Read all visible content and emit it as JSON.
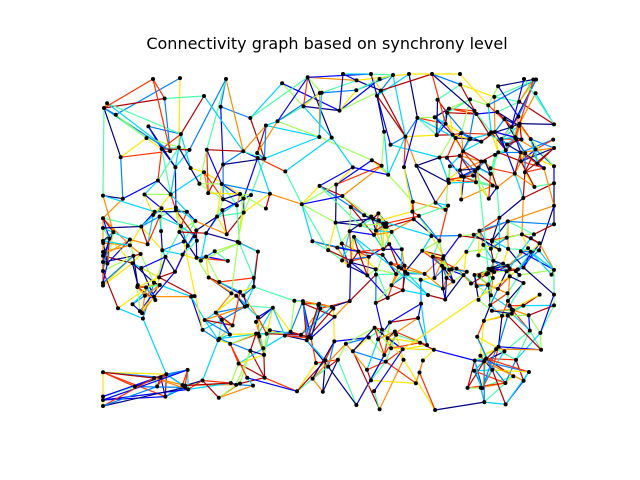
{
  "figure": {
    "title": "Connectivity graph based on synchrony level",
    "background": "#ffffff",
    "node_color": "#000000",
    "colormap": "jet",
    "edge_palette": [
      "#00007f",
      "#0000ff",
      "#0080ff",
      "#00d4ff",
      "#4dffaa",
      "#a0ff5a",
      "#ffe600",
      "#ff8c00",
      "#ff3000",
      "#b00000"
    ],
    "show_axes": false,
    "show_grid": false,
    "show_legend": false
  }
}
